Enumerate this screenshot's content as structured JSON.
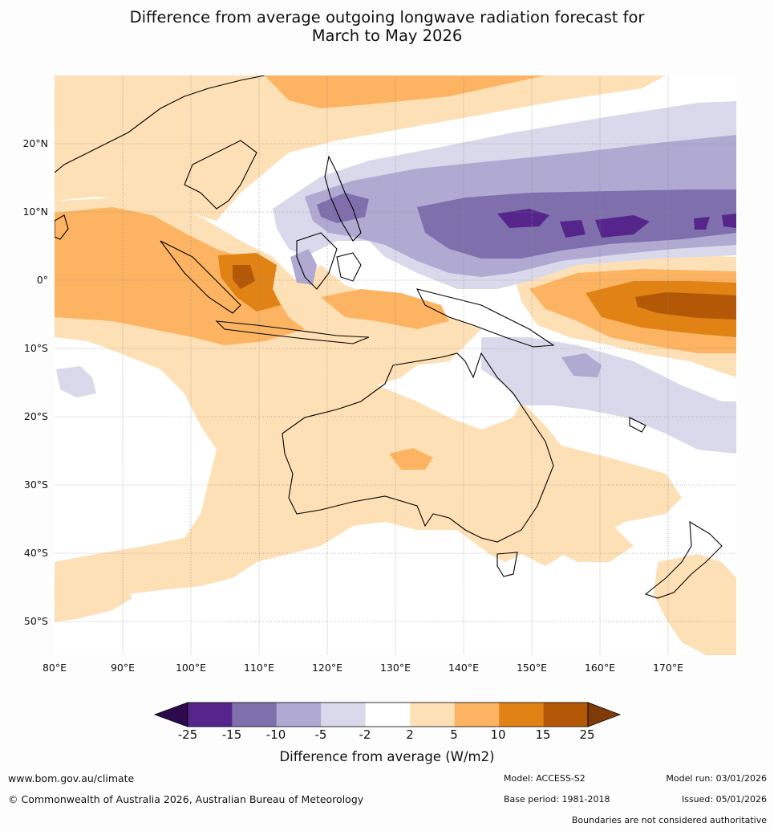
{
  "title": {
    "line1": "Difference from average outgoing longwave radiation forecast for",
    "line2": "March to May 2026"
  },
  "map": {
    "lat_labels": [
      "20°N",
      "10°N",
      "0°",
      "10°S",
      "20°S",
      "30°S",
      "40°S",
      "50°S"
    ],
    "lon_labels": [
      "80°E",
      "90°E",
      "100°E",
      "110°E",
      "120°E",
      "130°E",
      "140°E",
      "150°E",
      "160°E",
      "170°E"
    ],
    "lon_range": [
      80,
      180
    ],
    "lat_range": [
      -55,
      30
    ]
  },
  "colorbar": {
    "labels": [
      "-25",
      "-15",
      "-10",
      "-5",
      "-2",
      "2",
      "5",
      "10",
      "15",
      "25"
    ],
    "colors": [
      "#2d0a4e",
      "#55258c",
      "#7f70ad",
      "#b0a9d2",
      "#d9d9eb",
      "#ffffff",
      "#fee0b6",
      "#fdb462",
      "#e08214",
      "#b35806",
      "#7f3b08"
    ],
    "title": "Difference from average (W/m2)"
  },
  "footer": {
    "website": "www.bom.gov.au/climate",
    "copyright": "© Commonwealth of Australia 2026, Australian Bureau of Meteorology",
    "model": "Model: ACCESS-S2",
    "base_period": "Base period: 1981-2018",
    "model_run": "Model run: 03/01/2026",
    "issued": "Issued: 05/01/2026",
    "boundaries": "Boundaries are not considered authoritative"
  }
}
